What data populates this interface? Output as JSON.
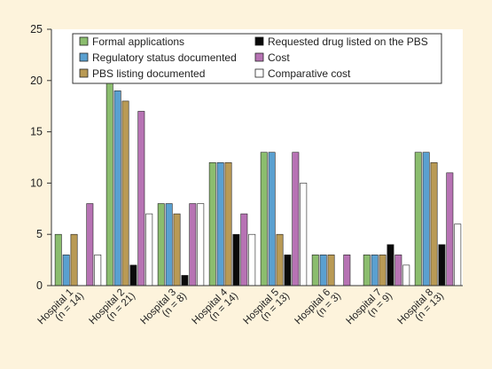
{
  "chart_data": {
    "type": "bar",
    "categories": [
      {
        "name": "Hospital 1",
        "n_label": "(n = 14)"
      },
      {
        "name": "Hospital 2",
        "n_label": "(n = 21)"
      },
      {
        "name": "Hospital 3",
        "n_label": "(n = 8)"
      },
      {
        "name": "Hospital 4",
        "n_label": "(n = 14)"
      },
      {
        "name": "Hospital 5",
        "n_label": "(n = 13)"
      },
      {
        "name": "Hospital 6",
        "n_label": "(n = 3)"
      },
      {
        "name": "Hospital 7",
        "n_label": "(n = 9)"
      },
      {
        "name": "Hospital 8",
        "n_label": "(n = 13)"
      }
    ],
    "series": [
      {
        "name": "Formal applications",
        "color": "#8bbd6e",
        "values": [
          5,
          20,
          8,
          12,
          13,
          3,
          3,
          13
        ]
      },
      {
        "name": "Regulatory status documented",
        "color": "#5aa0d0",
        "values": [
          3,
          19,
          8,
          12,
          13,
          3,
          3,
          13
        ]
      },
      {
        "name": "PBS listing documented",
        "color": "#b99a55",
        "values": [
          5,
          18,
          7,
          12,
          5,
          3,
          3,
          12
        ]
      },
      {
        "name": "Requested drug listed on the PBS",
        "color": "#0a0a0a",
        "values": [
          0,
          2,
          1,
          5,
          3,
          0,
          4,
          4
        ]
      },
      {
        "name": "Cost",
        "color": "#b773b4",
        "values": [
          8,
          17,
          8,
          7,
          13,
          3,
          3,
          11
        ]
      },
      {
        "name": "Comparative cost",
        "color": "#ffffff",
        "values": [
          3,
          7,
          8,
          5,
          10,
          0,
          2,
          6
        ]
      }
    ],
    "yticks": [
      0,
      5,
      10,
      15,
      20,
      25
    ],
    "ylim": [
      0,
      25
    ],
    "grid": false,
    "legend_position": "top"
  }
}
